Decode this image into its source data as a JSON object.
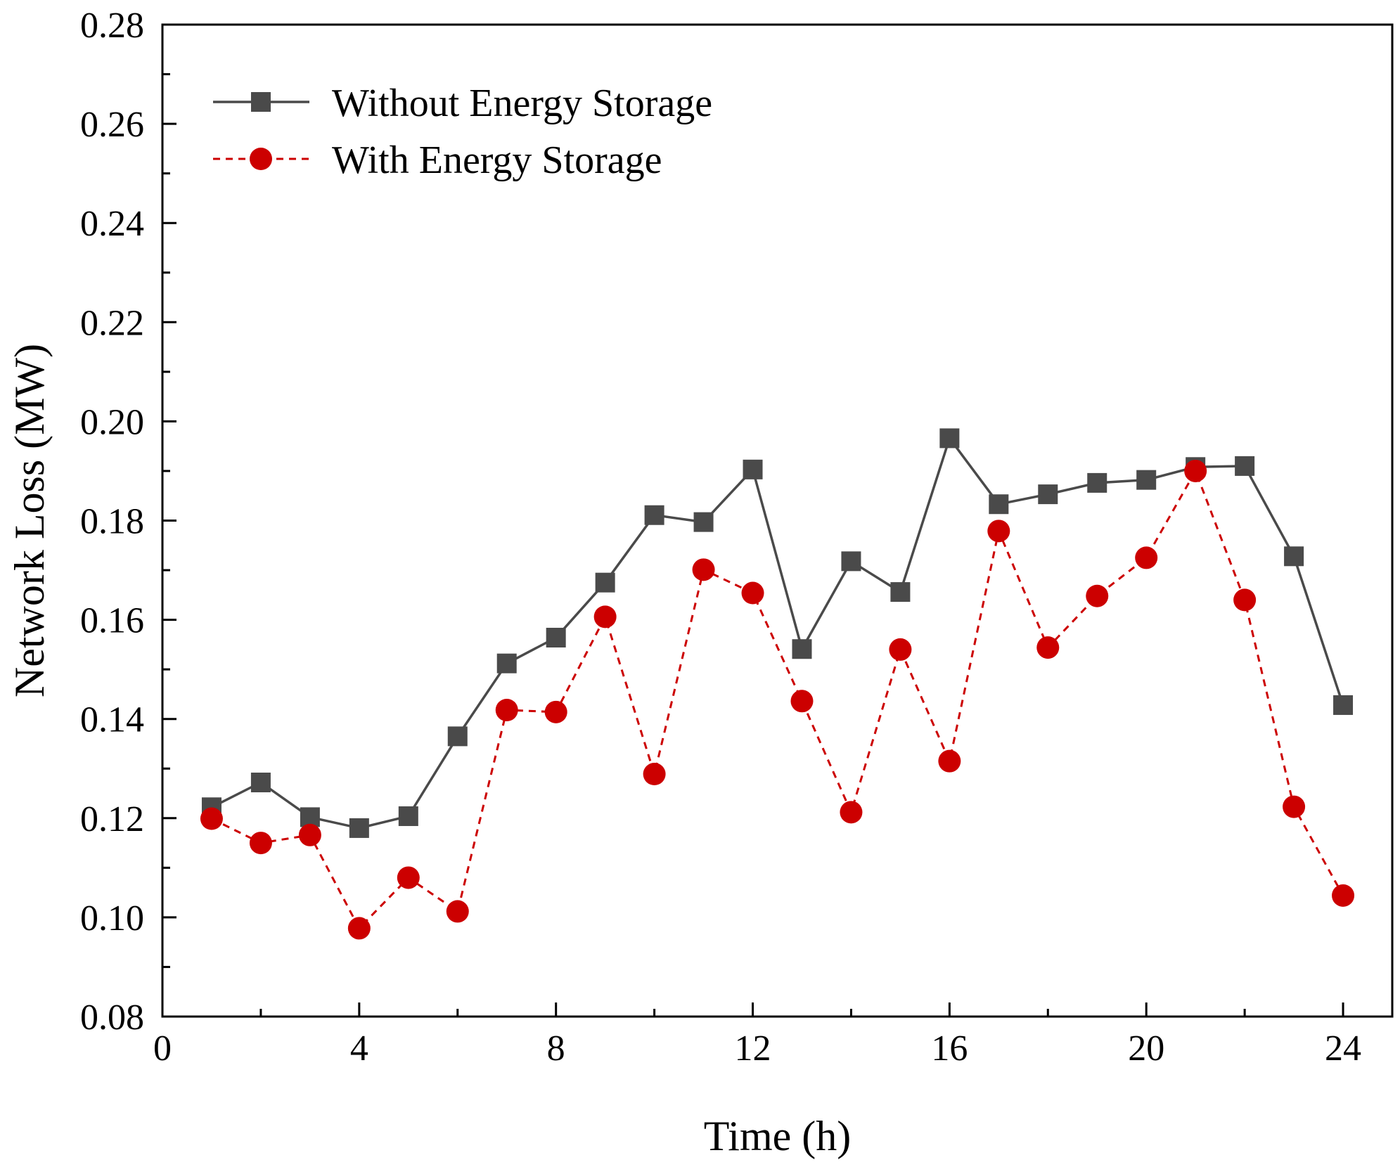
{
  "chart_data": {
    "type": "line",
    "title": "",
    "xlabel": "Time (h)",
    "ylabel": "Network Loss (MW)",
    "xlim": [
      0,
      25
    ],
    "ylim": [
      0.08,
      0.28
    ],
    "x_ticks": [
      0,
      4,
      8,
      12,
      16,
      20,
      24
    ],
    "y_ticks": [
      0.08,
      0.1,
      0.12,
      0.14,
      0.16,
      0.18,
      0.2,
      0.22,
      0.24,
      0.26,
      0.28
    ],
    "x_tick_labels": [
      "0",
      "4",
      "8",
      "12",
      "16",
      "20",
      "24"
    ],
    "y_tick_labels": [
      "0.08",
      "0.10",
      "0.12",
      "0.14",
      "0.16",
      "0.18",
      "0.20",
      "0.22",
      "0.24",
      "0.26",
      "0.28"
    ],
    "grid": false,
    "legend_position": "top-left",
    "x": [
      1,
      2,
      3,
      4,
      5,
      6,
      7,
      8,
      9,
      10,
      11,
      12,
      13,
      14,
      15,
      16,
      17,
      18,
      19,
      20,
      21,
      22,
      23,
      24
    ],
    "series": [
      {
        "name": "Without Energy Storage",
        "color": "#4a4a4a",
        "marker": "square",
        "line_style": "solid",
        "values": [
          0.1222,
          0.1272,
          0.1202,
          0.118,
          0.1204,
          0.1365,
          0.1512,
          0.1564,
          0.1675,
          0.1811,
          0.1797,
          0.1903,
          0.1541,
          0.1718,
          0.1656,
          0.1966,
          0.1833,
          0.1853,
          0.1876,
          0.1882,
          0.1908,
          0.191,
          0.1728,
          0.1428
        ]
      },
      {
        "name": "With Energy Storage",
        "color": "#cc0000",
        "marker": "circle",
        "line_style": "dashed",
        "values": [
          0.1199,
          0.115,
          0.1166,
          0.0978,
          0.108,
          0.1012,
          0.1418,
          0.1414,
          0.1606,
          0.1289,
          0.1701,
          0.1654,
          0.1436,
          0.1212,
          0.154,
          0.1315,
          0.1779,
          0.1544,
          0.1648,
          0.1725,
          0.19,
          0.164,
          0.1223,
          0.1044
        ]
      }
    ]
  }
}
